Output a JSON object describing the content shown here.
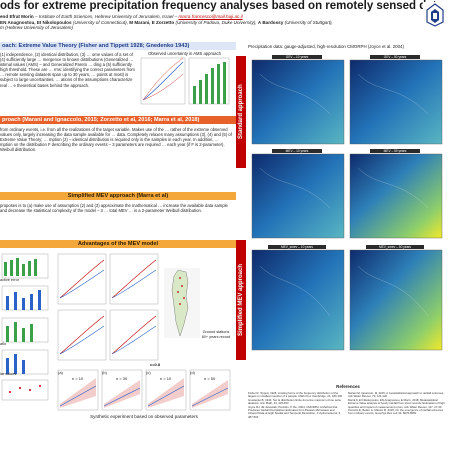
{
  "header": {
    "title": "ods for extreme precipitation frequency analyses based on remotely sensed data",
    "authors_line1_pre": "end Efrat Morin",
    "authors_line1_mid": " – Institute of Earth Sciences, Hebrew University of Jerusalem, Israel – ",
    "email": "marra.francesco@mail.huji.ac.il",
    "authors_line2_names": "EN Anagnostou, EI Nikolopoulos",
    "authors_line2_rest": " (University of Connecticut), ",
    "authors_line2_names2": "M Marani, E Zorzetto",
    "authors_line2_rest2": " (University of Padova, Duke University), ",
    "authors_line2_names3": "A Bardossy",
    "authors_line2_rest3": " (University of Stuttgart),",
    "authors_line3": "m (Hebrew University of Jerusalem)"
  },
  "sections": {
    "extreme_value": {
      "heading": "oach: Extreme Value Theory (Fisher and Tippett 1928; Gnedenko 1943)",
      "text": "(1) independence, (2) identical distribution, (3) … ome values of a set of (4) sufficiently large … mergence to known distributions (Generalized … istimal values (AMS) – and Generalized Pareto … ding a (5) sufficiently high threshold. These are … rms: identifying the correct parameters from … remote sensing datasets span up to 30 years, … points at most) is subject to large uncertainties. … ations of the assumptions characterize real … e theoretical bases behind the approach.",
      "chart_title": "Observed uncertainty in AMS approach"
    },
    "mev": {
      "heading": "proach (Marani and Ignaccolo, 2015; Zorzetto et al, 2016; Marra et al, 2018)",
      "text": "from ordinary events, i.e. from all the realizations of the target variable. Makes use of the … rather of the extreme observed values only, largely increasing the data sample available for … data. Completely relaxes many assumptions (3), (4) and (5) of Extreme Value Theory; … mption (2) – identical distribution is required only in the samples in each year. In addition, … mption on the distribution F describing the ordinary events – 3 parameters are required … each year (if F is 2-parameter). Weibull distribution."
    },
    "smev": {
      "heading": "Simplified MEV approach (Marra et al)",
      "text": "proposes is to (a) make use of assumption (2) and (3) approximate the mathematical … increase the available data sample and decrease the statistical complexity of the model – 3 … total MEV … is a 2-parameter Weibull distribution."
    },
    "advantages": {
      "heading": "Advantages of the MEV model",
      "labels": [
        "active error",
        "atio",
        "lar values"
      ],
      "synthetic_caption": "Synthetic experiment based on observed parameters",
      "ground_caption": "Ground stations 60+ years record",
      "panels": [
        "(a)",
        "(b)",
        "(c)",
        "(d)"
      ],
      "panel_n": [
        "n = 10",
        "n = 30",
        "n = 10",
        "n = 50"
      ],
      "panel_c": "c=0.8"
    }
  },
  "right": {
    "precip_label": "Precipitation data: gauge-adjusted, high-resolution CMORPH (Joyce et al. 2004)",
    "standard_label": "Standard approach",
    "simplified_label": "Simplified MEV approach",
    "map_titles_top": [
      "GEV – 10 years",
      "GEV – 50 years"
    ],
    "map_titles_mid": [
      "MEV – 10 years",
      "MEV – 50 years"
    ],
    "map_titles_bot": [
      "MEV_smev – 10 years",
      "MEV_smev – 50 years"
    ]
  },
  "references": {
    "heading": "References",
    "items": [
      "Fisher R, Tippett, 1928, Limiting forms of the frequency distribution of the largest or smallest member of a sample. Math Proc Cambridge, 24, 180-190",
      "Gnedenko B, 1943, Sur la distribution limite du terme maximum d'une série aléatoire, Ann Math, 44, 423-453",
      "Joyce RJ, JE Janowiak, PA Arkin, P Xie, 2004: CMORPH: A Method that Produces Global Precipitation Estimates from Passive Microwave and Infrared Data at High Spatial and Temporal Resolution, J Hydrometeorol, 5, 487-503"
    ],
    "items_right": [
      "Marani M, Ignaccolo, M, 2015, A metastatistical approach to rainfall extremes, Adv Water Resour, 79, 121-126",
      "Marra F, EI Nikolopoulos, EN Anagnostou, E Morin, 2018, Metastatistical Extreme Value analysis of hourly rainfall from short records: Estimation of high quantiles and impact of measurement errors. Adv Water Resour, 117, 27-39",
      "Zorzetto E, Botter G, Marani M, 2016, On the emergence of rainfall extremes from ordinary events, Geophys Res Lett 43, 8076-8082"
    ]
  },
  "colors": {
    "accent_red": "#c00000",
    "header_blue": "#1f3c88",
    "orange": "#f4a83b",
    "map_low": "#0e2a6b",
    "map_high": "#f2e92a"
  },
  "icons": [
    "university-logo-icon"
  ]
}
